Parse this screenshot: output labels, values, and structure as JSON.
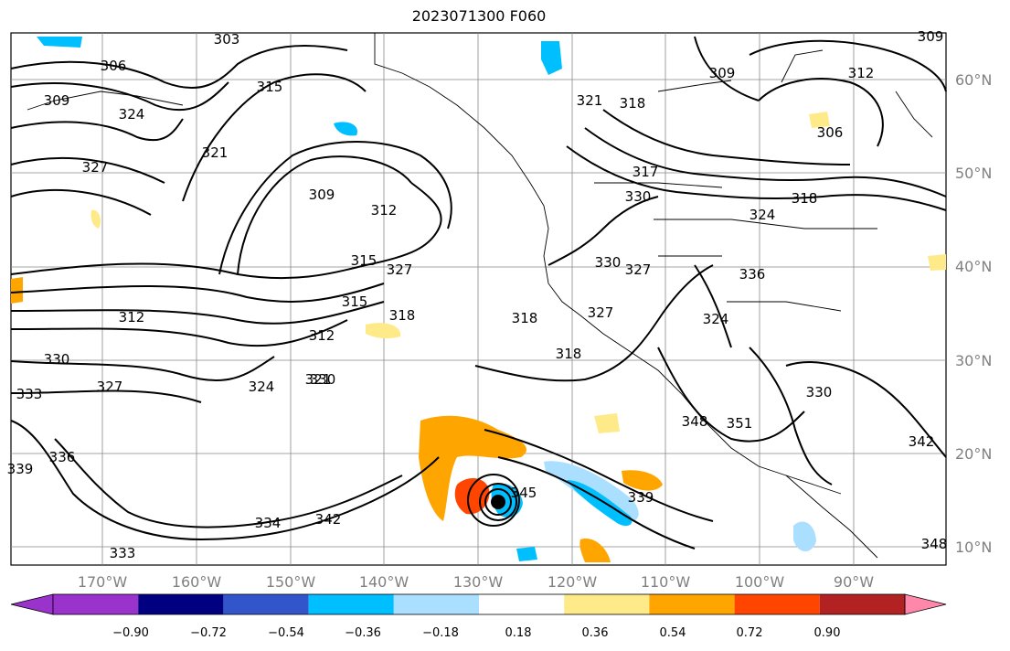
{
  "title": "2023071300 F060",
  "map": {
    "lat_labels": [
      "60°N",
      "50°N",
      "40°N",
      "30°N",
      "20°N",
      "10°N"
    ],
    "lon_labels": [
      "170°W",
      "160°W",
      "150°W",
      "140°W",
      "130°W",
      "120°W",
      "110°W",
      "100°W",
      "90°W"
    ],
    "contour_labels": [
      "303",
      "306",
      "309",
      "309",
      "312",
      "306",
      "309",
      "315",
      "324",
      "321",
      "327",
      "318",
      "309",
      "312",
      "315",
      "321",
      "317",
      "330",
      "318",
      "324",
      "327",
      "330",
      "327",
      "336",
      "312",
      "315",
      "324",
      "312",
      "318",
      "330",
      "327",
      "318",
      "330",
      "333",
      "321",
      "318",
      "327",
      "324",
      "345",
      "339",
      "336",
      "342",
      "334",
      "333",
      "339",
      "351",
      "348",
      "330",
      "342",
      "348"
    ]
  },
  "colorbar": {
    "tick_labels": [
      "−0.90",
      "−0.72",
      "−0.54",
      "−0.36",
      "−0.18",
      "0.18",
      "0.36",
      "0.54",
      "0.72",
      "0.90"
    ],
    "colors": [
      "#9933cc",
      "#000080",
      "#3355cc",
      "#00bfff",
      "#aadfff",
      "#ffffff",
      "#ffea8a",
      "#ffa500",
      "#ff4500",
      "#b22222",
      "#ff88aa"
    ]
  }
}
